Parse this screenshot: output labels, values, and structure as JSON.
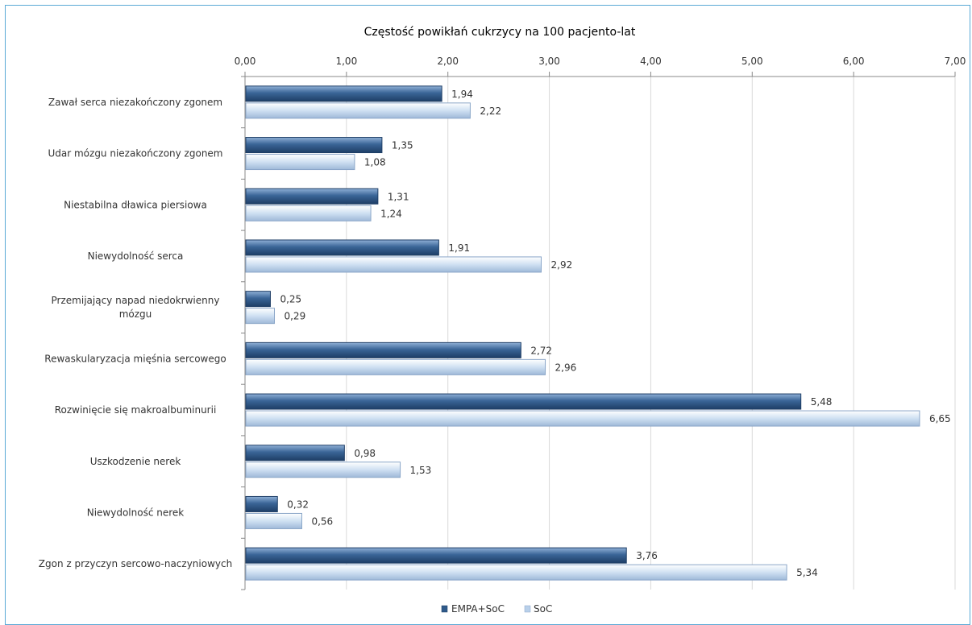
{
  "chart_data": {
    "type": "bar",
    "orientation": "horizontal",
    "title": "Częstość powikłań cukrzycy na 100 pacjento-lat",
    "x_axis_position": "top",
    "xlim": [
      0,
      7
    ],
    "x_ticks": [
      "0,00",
      "1,00",
      "2,00",
      "3,00",
      "4,00",
      "5,00",
      "6,00",
      "7,00"
    ],
    "grid": true,
    "legend_position": "bottom",
    "categories": [
      "Zawał serca niezakończony zgonem",
      "Udar mózgu niezakończony zgonem",
      "Niestabilna dławica piersiowa",
      "Niewydolność serca",
      "Przemijający napad niedokrwienny mózgu",
      "Rewaskularyzacja mięśnia sercowego",
      "Rozwinięcie się makroalbuminurii",
      "Uszkodzenie nerek",
      "Niewydolność nerek",
      "Zgon z przyczyn sercowo-naczyniowych"
    ],
    "series": [
      {
        "name": "EMPA+SoC",
        "color": "#2f5a8a",
        "values": [
          1.94,
          1.35,
          1.31,
          1.91,
          0.25,
          2.72,
          5.48,
          0.98,
          0.32,
          3.76
        ],
        "labels": [
          "1,94",
          "1,35",
          "1,31",
          "1,91",
          "0,25",
          "2,72",
          "5,48",
          "0,98",
          "0,32",
          "3,76"
        ]
      },
      {
        "name": "SoC",
        "color": "#b9d0ea",
        "values": [
          2.22,
          1.08,
          1.24,
          2.92,
          0.29,
          2.96,
          6.65,
          1.53,
          0.56,
          5.34
        ],
        "labels": [
          "2,22",
          "1,08",
          "1,24",
          "2,92",
          "0,29",
          "2,96",
          "6,65",
          "1,53",
          "0,56",
          "5,34"
        ]
      }
    ]
  }
}
